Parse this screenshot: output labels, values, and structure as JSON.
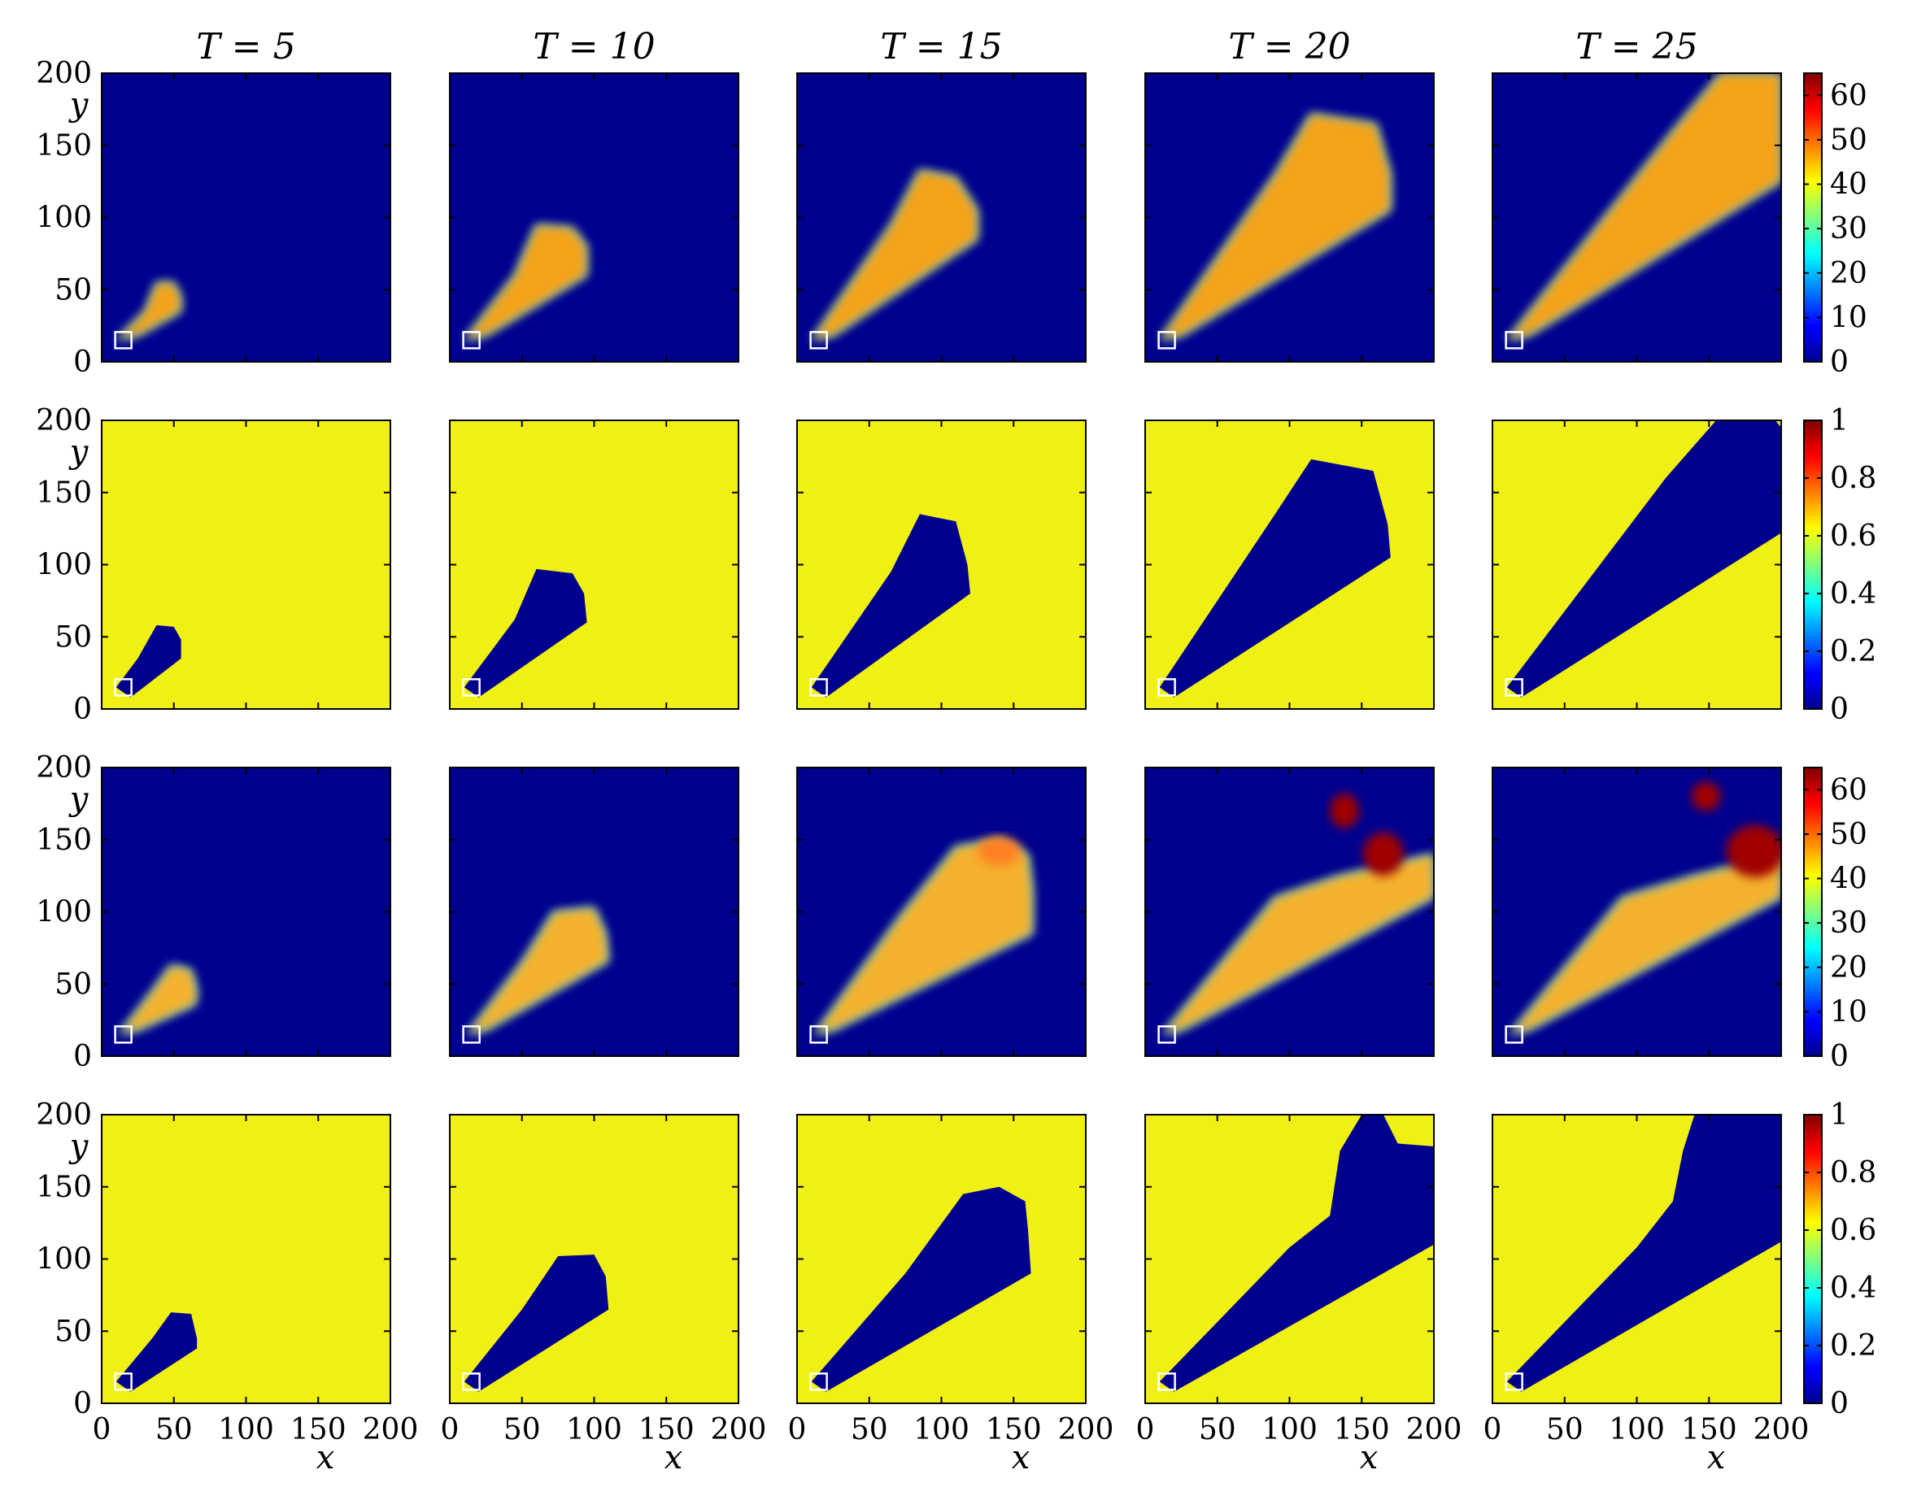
{
  "chart_data": {
    "type": "heatmap",
    "layout": "4 rows x 5 columns of panels",
    "column_titles": [
      "T = 5",
      "T = 10",
      "T = 15",
      "T = 20",
      "T = 25"
    ],
    "xlabel": "x",
    "ylabel": "y",
    "xlim": [
      0,
      200
    ],
    "ylim": [
      0,
      200
    ],
    "xticks": [
      "0",
      "50",
      "100",
      "150",
      "200"
    ],
    "yticks": [
      "0",
      "50",
      "100",
      "150",
      "200"
    ],
    "source_marker": {
      "x": 15,
      "y": 15,
      "shape": "square",
      "color": "#ffffff"
    },
    "colormap": "jet",
    "rows": [
      {
        "background_color": "#00008f",
        "fill_color": "#ffa010",
        "colorbar": {
          "min": 0,
          "max": 65,
          "ticks": [
            "0",
            "10",
            "20",
            "30",
            "40",
            "50",
            "60"
          ]
        },
        "regions": [
          [
            [
              10,
              15
            ],
            [
              30,
              35
            ],
            [
              38,
              55
            ],
            [
              50,
              55
            ],
            [
              55,
              45
            ],
            [
              55,
              35
            ],
            [
              25,
              18
            ]
          ],
          [
            [
              10,
              15
            ],
            [
              45,
              60
            ],
            [
              60,
              95
            ],
            [
              85,
              93
            ],
            [
              95,
              80
            ],
            [
              95,
              60
            ],
            [
              25,
              18
            ]
          ],
          [
            [
              10,
              15
            ],
            [
              65,
              95
            ],
            [
              85,
              133
            ],
            [
              110,
              128
            ],
            [
              125,
              105
            ],
            [
              125,
              85
            ],
            [
              25,
              18
            ]
          ],
          [
            [
              10,
              15
            ],
            [
              90,
              130
            ],
            [
              115,
              172
            ],
            [
              160,
              165
            ],
            [
              170,
              130
            ],
            [
              170,
              105
            ],
            [
              25,
              18
            ]
          ],
          [
            [
              10,
              15
            ],
            [
              125,
              160
            ],
            [
              158,
              200
            ],
            [
              200,
              200
            ],
            [
              200,
              125
            ],
            [
              25,
              18
            ]
          ]
        ]
      },
      {
        "background_color": "#f0f014",
        "fill_color": "#00008f",
        "colorbar": {
          "min": 0,
          "max": 1,
          "ticks": [
            "0",
            "0.2",
            "0.4",
            "0.6",
            "0.8",
            "1"
          ]
        },
        "regions": [
          [
            [
              10,
              15
            ],
            [
              25,
              35
            ],
            [
              38,
              58
            ],
            [
              50,
              57
            ],
            [
              55,
              48
            ],
            [
              55,
              35
            ],
            [
              20,
              8
            ]
          ],
          [
            [
              10,
              15
            ],
            [
              45,
              62
            ],
            [
              60,
              97
            ],
            [
              85,
              94
            ],
            [
              93,
              80
            ],
            [
              95,
              60
            ],
            [
              20,
              8
            ]
          ],
          [
            [
              10,
              15
            ],
            [
              65,
              95
            ],
            [
              85,
              135
            ],
            [
              110,
              130
            ],
            [
              118,
              100
            ],
            [
              120,
              80
            ],
            [
              20,
              8
            ]
          ],
          [
            [
              10,
              15
            ],
            [
              90,
              135
            ],
            [
              115,
              173
            ],
            [
              158,
              165
            ],
            [
              168,
              128
            ],
            [
              170,
              105
            ],
            [
              20,
              8
            ]
          ],
          [
            [
              10,
              15
            ],
            [
              120,
              160
            ],
            [
              155,
              200
            ],
            [
              196,
              200
            ],
            [
              200,
              195
            ],
            [
              200,
              122
            ],
            [
              20,
              8
            ]
          ]
        ]
      },
      {
        "background_color": "#00008f",
        "fill_color": "#ffb020",
        "colorbar": {
          "min": 0,
          "max": 65,
          "ticks": [
            "0",
            "10",
            "20",
            "30",
            "40",
            "50",
            "60"
          ]
        },
        "regions": [
          [
            [
              12,
              15
            ],
            [
              35,
              45
            ],
            [
              48,
              63
            ],
            [
              62,
              60
            ],
            [
              66,
              45
            ],
            [
              65,
              36
            ],
            [
              25,
              18
            ]
          ],
          [
            [
              12,
              15
            ],
            [
              50,
              65
            ],
            [
              72,
              100
            ],
            [
              100,
              103
            ],
            [
              108,
              85
            ],
            [
              110,
              66
            ],
            [
              25,
              18
            ]
          ],
          [
            [
              12,
              15
            ],
            [
              70,
              95
            ],
            [
              110,
              145
            ],
            [
              140,
              150
            ],
            [
              160,
              140
            ],
            [
              163,
              115
            ],
            [
              163,
              85
            ],
            [
              25,
              18
            ]
          ],
          [
            [
              12,
              15
            ],
            [
              90,
              110
            ],
            [
              135,
              125
            ],
            [
              200,
              140
            ],
            [
              200,
              110
            ],
            [
              25,
              18
            ]
          ],
          [
            [
              12,
              15
            ],
            [
              90,
              110
            ],
            [
              140,
              125
            ],
            [
              200,
              140
            ],
            [
              200,
              110
            ],
            [
              25,
              18
            ]
          ]
        ]
      },
      {
        "background_color": "#f0f014",
        "fill_color": "#00008f",
        "colorbar": {
          "min": 0,
          "max": 1,
          "ticks": [
            "0",
            "0.2",
            "0.4",
            "0.6",
            "0.8",
            "1"
          ]
        },
        "regions": [
          [
            [
              10,
              15
            ],
            [
              35,
              45
            ],
            [
              48,
              63
            ],
            [
              62,
              62
            ],
            [
              66,
              45
            ],
            [
              66,
              38
            ],
            [
              20,
              8
            ]
          ],
          [
            [
              10,
              15
            ],
            [
              50,
              65
            ],
            [
              75,
              102
            ],
            [
              100,
              103
            ],
            [
              108,
              88
            ],
            [
              110,
              65
            ],
            [
              20,
              8
            ]
          ],
          [
            [
              10,
              15
            ],
            [
              75,
              90
            ],
            [
              115,
              145
            ],
            [
              140,
              150
            ],
            [
              158,
              140
            ],
            [
              160,
              120
            ],
            [
              162,
              90
            ],
            [
              20,
              8
            ]
          ],
          [
            [
              10,
              15
            ],
            [
              100,
              108
            ],
            [
              128,
              130
            ],
            [
              135,
              175
            ],
            [
              150,
              200
            ],
            [
              165,
              200
            ],
            [
              175,
              180
            ],
            [
              200,
              178
            ],
            [
              200,
              110
            ],
            [
              20,
              8
            ]
          ],
          [
            [
              10,
              15
            ],
            [
              100,
              108
            ],
            [
              125,
              140
            ],
            [
              132,
              175
            ],
            [
              140,
              200
            ],
            [
              200,
              200
            ],
            [
              200,
              112
            ],
            [
              20,
              8
            ]
          ]
        ]
      }
    ],
    "hotspots": {
      "row3_T20": [
        {
          "x": 138,
          "y": 170,
          "rx": 10,
          "ry": 12,
          "color": "#a00000"
        },
        {
          "x": 165,
          "y": 140,
          "rx": 14,
          "ry": 15,
          "color": "#a00000"
        }
      ],
      "row3_T25": [
        {
          "x": 148,
          "y": 180,
          "rx": 10,
          "ry": 10,
          "color": "#a00000"
        },
        {
          "x": 182,
          "y": 142,
          "rx": 20,
          "ry": 18,
          "color": "#a00000"
        }
      ],
      "row3_T15": [
        {
          "x": 140,
          "y": 142,
          "rx": 15,
          "ry": 10,
          "color": "#ff8020"
        }
      ]
    }
  }
}
